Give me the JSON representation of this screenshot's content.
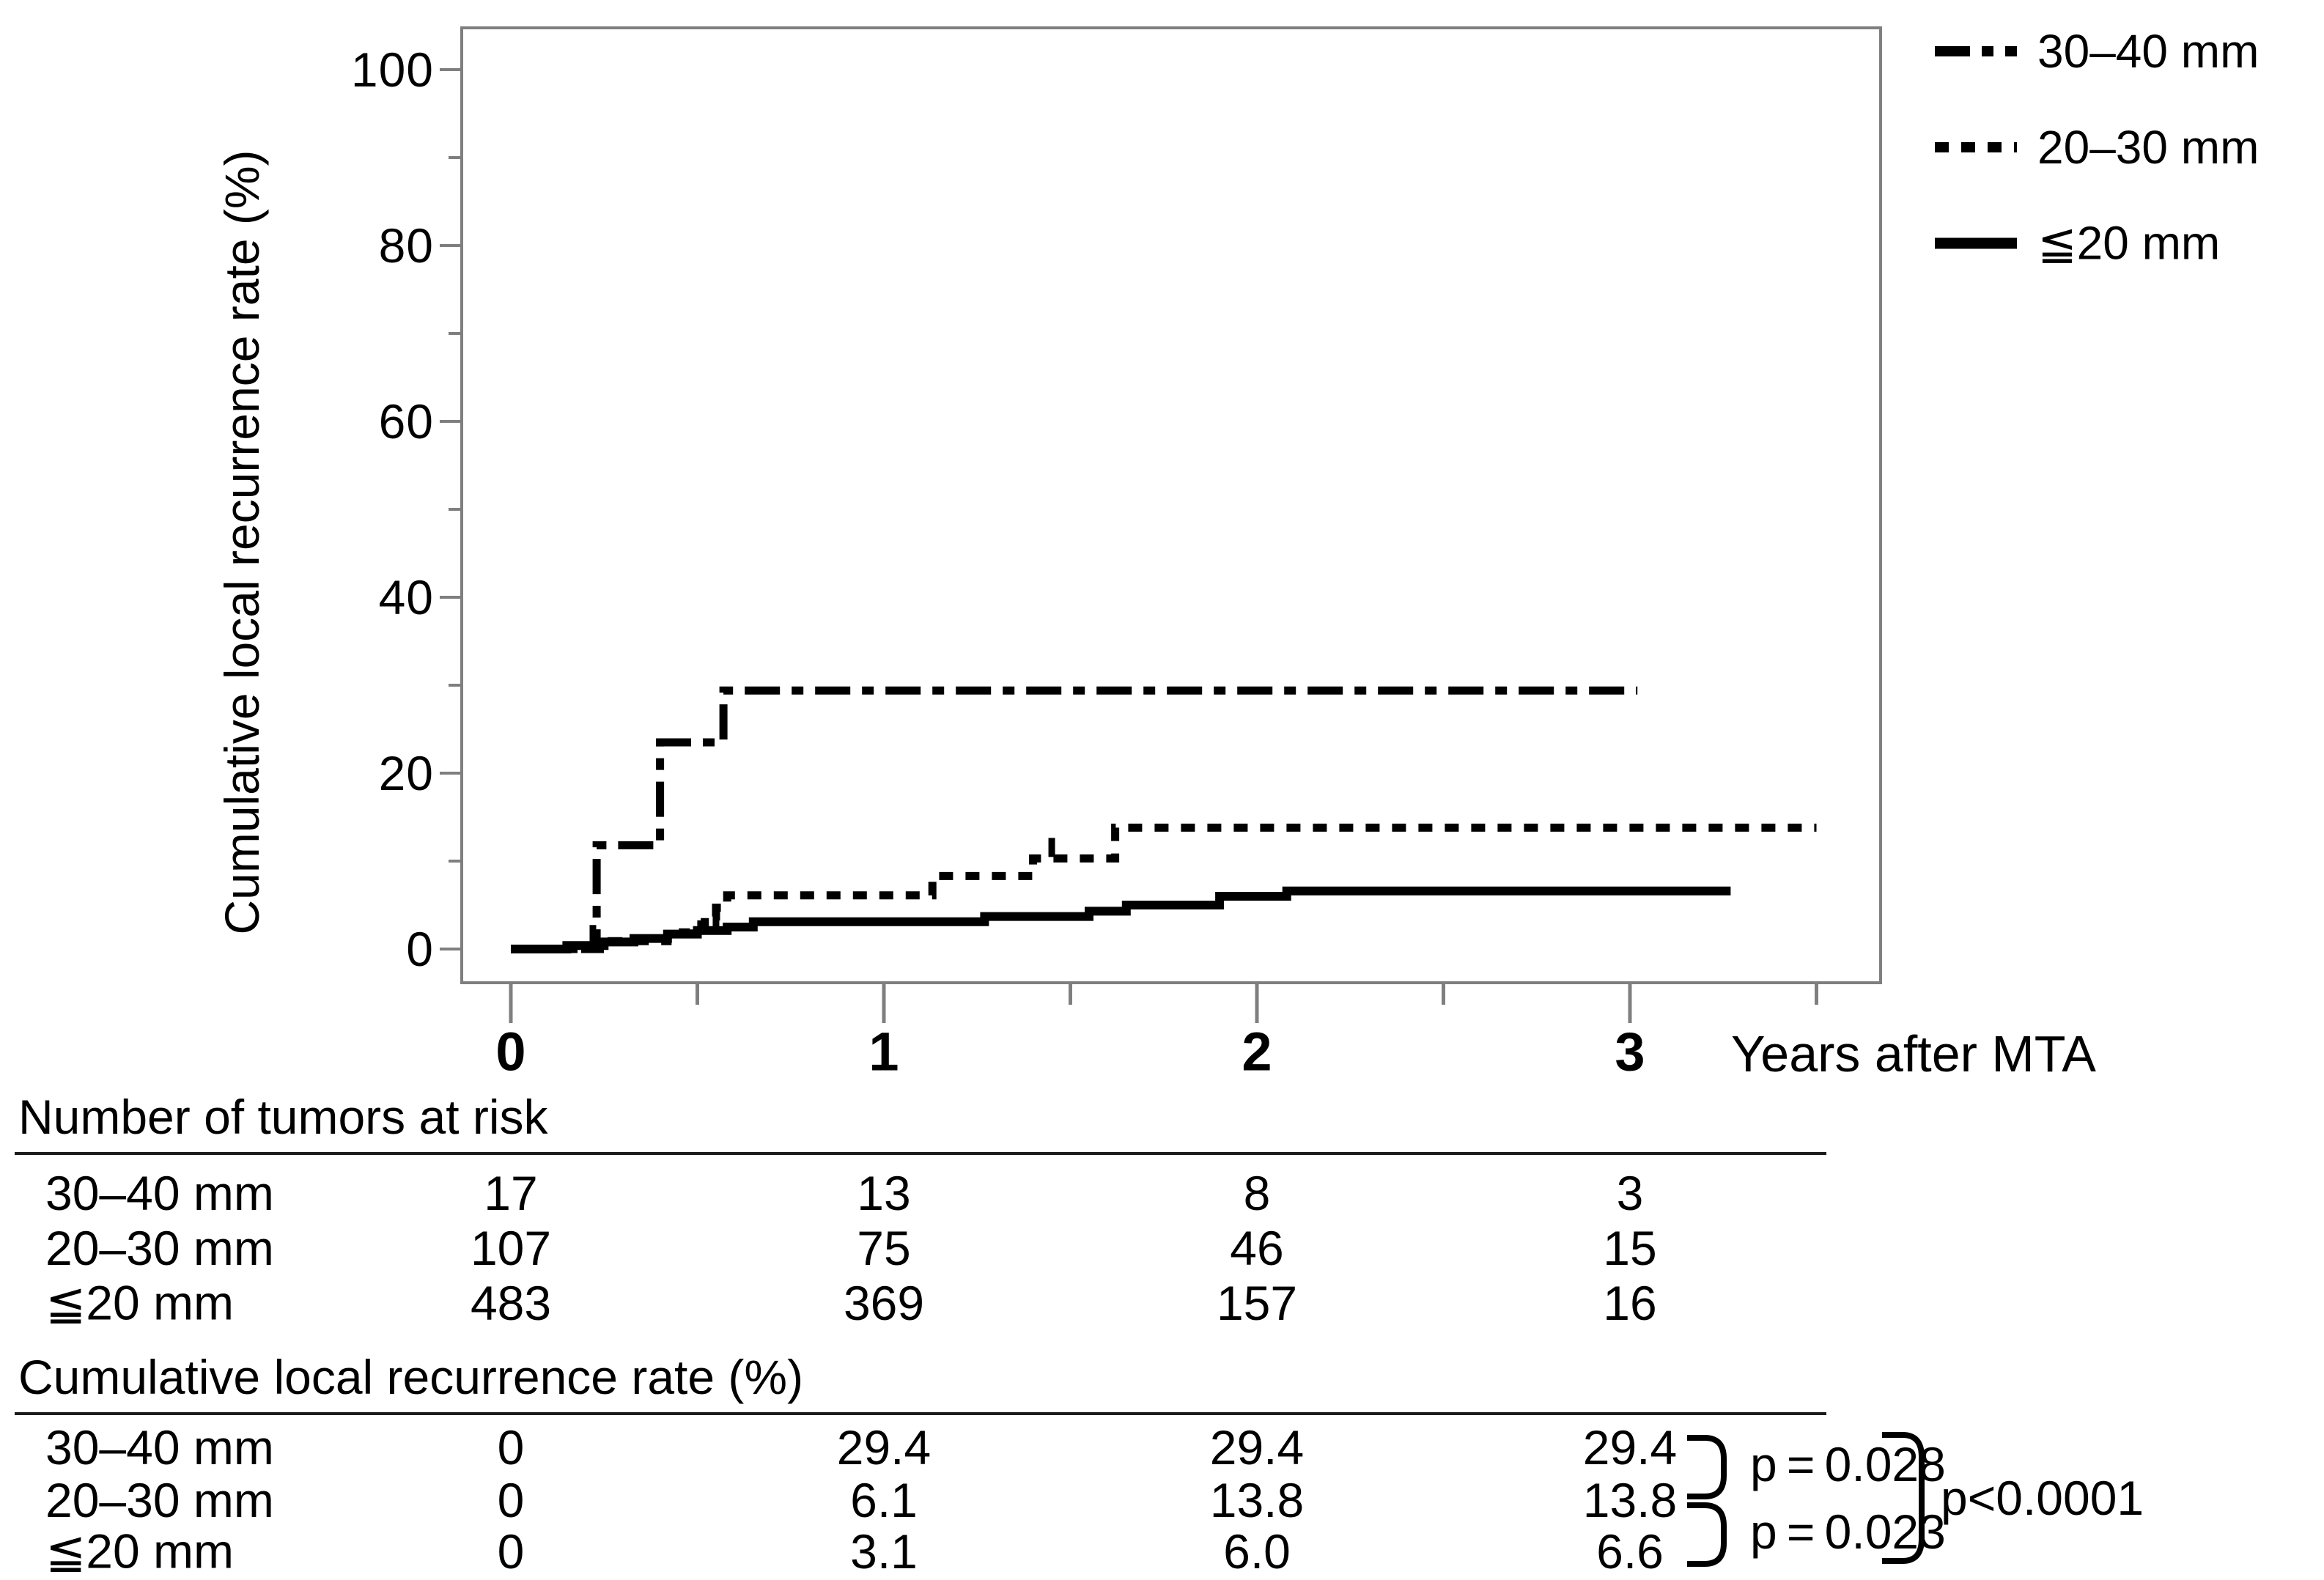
{
  "chart_data": {
    "type": "line",
    "subtype": "kaplan-meier-step",
    "title": "",
    "xlabel": "Years after MTA",
    "ylabel": "Cumulative local recurrence rate (%)",
    "xlim": [
      0,
      3.67
    ],
    "ylim": [
      0,
      100
    ],
    "x_ticks": [
      0,
      1,
      2,
      3
    ],
    "x_minor_ticks": [
      0.5,
      1.5,
      2.5,
      3.5
    ],
    "y_ticks": [
      0,
      20,
      40,
      60,
      80,
      100
    ],
    "y_minor_ticks": [
      10,
      30,
      50,
      70,
      90
    ],
    "grid": false,
    "legend_position": "upper-right-outside",
    "frame_color": "#7f7f7f",
    "line_color": "#000000",
    "series": [
      {
        "name": "30–40 mm",
        "dash": "dashdot",
        "steps": [
          [
            0,
            0
          ],
          [
            0.23,
            0
          ],
          [
            0.23,
            11.8
          ],
          [
            0.4,
            11.8
          ],
          [
            0.4,
            23.5
          ],
          [
            0.57,
            23.5
          ],
          [
            0.57,
            29.4
          ],
          [
            3.02,
            29.4
          ]
        ]
      },
      {
        "name": "20–30 mm",
        "dash": "dotted",
        "steps": [
          [
            0,
            0
          ],
          [
            0.27,
            0
          ],
          [
            0.27,
            0.9
          ],
          [
            0.42,
            0.9
          ],
          [
            0.42,
            1.9
          ],
          [
            0.48,
            1.9
          ],
          [
            0.48,
            2.8
          ],
          [
            0.52,
            2.8
          ],
          [
            0.52,
            3.7
          ],
          [
            0.55,
            3.7
          ],
          [
            0.55,
            4.7
          ],
          [
            0.58,
            4.7
          ],
          [
            0.58,
            6.1
          ],
          [
            1.13,
            6.1
          ],
          [
            1.13,
            8.3
          ],
          [
            1.4,
            8.3
          ],
          [
            1.4,
            10.3
          ],
          [
            1.62,
            10.3
          ],
          [
            1.62,
            13.8
          ],
          [
            3.5,
            13.8
          ]
        ]
      },
      {
        "name": "≦20 mm",
        "dash": "solid",
        "steps": [
          [
            0,
            0
          ],
          [
            0.15,
            0
          ],
          [
            0.15,
            0.4
          ],
          [
            0.25,
            0.4
          ],
          [
            0.25,
            0.8
          ],
          [
            0.33,
            0.8
          ],
          [
            0.33,
            1.2
          ],
          [
            0.42,
            1.2
          ],
          [
            0.42,
            1.7
          ],
          [
            0.5,
            1.7
          ],
          [
            0.5,
            2.1
          ],
          [
            0.58,
            2.1
          ],
          [
            0.58,
            2.5
          ],
          [
            0.65,
            2.5
          ],
          [
            0.65,
            3.1
          ],
          [
            1.27,
            3.1
          ],
          [
            1.27,
            3.7
          ],
          [
            1.55,
            3.7
          ],
          [
            1.55,
            4.3
          ],
          [
            1.65,
            4.3
          ],
          [
            1.65,
            5.0
          ],
          [
            1.9,
            5.0
          ],
          [
            1.9,
            6.0
          ],
          [
            2.08,
            6.0
          ],
          [
            2.08,
            6.6
          ],
          [
            3.27,
            6.6
          ]
        ]
      }
    ],
    "censor_marks": [
      {
        "series": 2,
        "t": 0.22,
        "v": 0.4
      },
      {
        "series": 2,
        "t": 0.55,
        "v": 2.1
      },
      {
        "series": 1,
        "t": 1.45,
        "v": 10.3
      }
    ]
  },
  "axis": {
    "y_tick_labels": [
      "100",
      "80",
      "60",
      "40",
      "20",
      "0"
    ],
    "x_tick_labels": [
      "0",
      "1",
      "2",
      "3"
    ]
  },
  "risk_table": {
    "title": "Number of tumors at risk",
    "rows": [
      {
        "label": "30–40 mm",
        "values": [
          "17",
          "13",
          "8",
          "3"
        ]
      },
      {
        "label": "20–30 mm",
        "values": [
          "107",
          "75",
          "46",
          "15"
        ]
      },
      {
        "label": "≦20 mm",
        "values": [
          "483",
          "369",
          "157",
          "16"
        ]
      }
    ]
  },
  "rate_table": {
    "title": "Cumulative local recurrence rate (%)",
    "rows": [
      {
        "label": "30–40 mm",
        "values": [
          "0",
          "29.4",
          "29.4",
          "29.4"
        ]
      },
      {
        "label": "20–30 mm",
        "values": [
          "0",
          "6.1",
          "13.8",
          "13.8"
        ]
      },
      {
        "label": "≦20 mm",
        "values": [
          "0",
          "3.1",
          "6.0",
          "6.6"
        ]
      }
    ]
  },
  "pvalues": {
    "p_top": "p = 0.028",
    "p_bottom": "p = 0.023",
    "p_overall": "p<0.0001"
  }
}
